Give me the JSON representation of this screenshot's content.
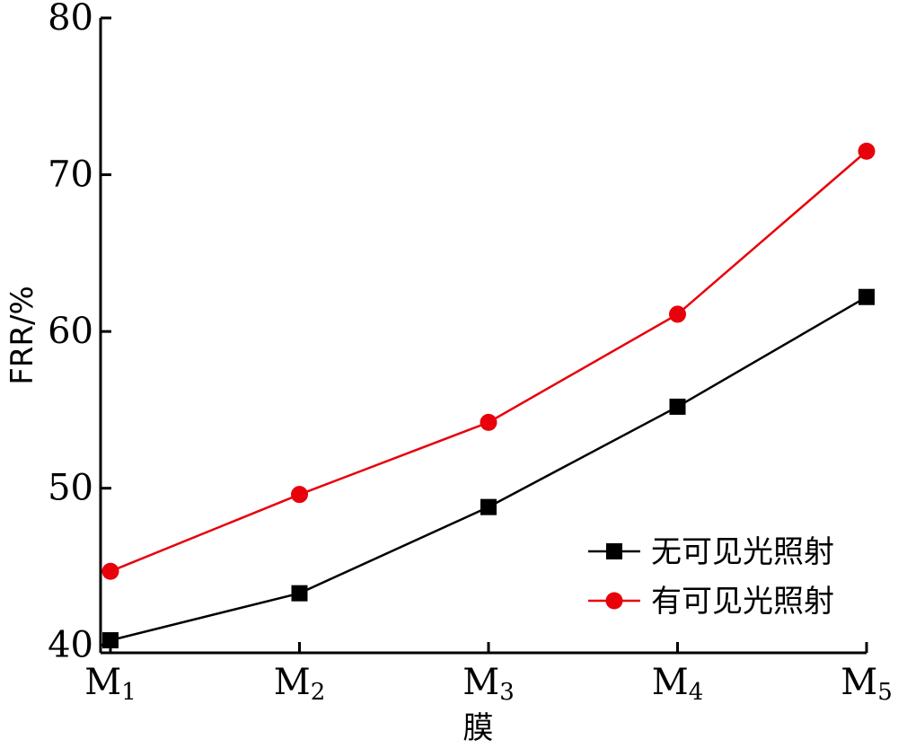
{
  "chart_data": {
    "type": "line",
    "categories": [
      {
        "base": "M",
        "sub": "1"
      },
      {
        "base": "M",
        "sub": "2"
      },
      {
        "base": "M",
        "sub": "3"
      },
      {
        "base": "M",
        "sub": "4"
      },
      {
        "base": "M",
        "sub": "5"
      }
    ],
    "series": [
      {
        "name": "无可见光照射",
        "marker": "square",
        "color": "#000000",
        "values": [
          40.3,
          43.3,
          48.8,
          55.2,
          62.2
        ]
      },
      {
        "name": "有可见光照射",
        "marker": "circle",
        "color": "#e8000b",
        "values": [
          44.7,
          49.6,
          54.2,
          61.1,
          71.5
        ]
      }
    ],
    "title": "",
    "xlabel": "膜",
    "ylabel": "FRR/%",
    "ylim": [
      39.5,
      80
    ],
    "yticks": [
      "40",
      "50",
      "60",
      "70",
      "80"
    ],
    "legend_position": "bottom-right"
  }
}
